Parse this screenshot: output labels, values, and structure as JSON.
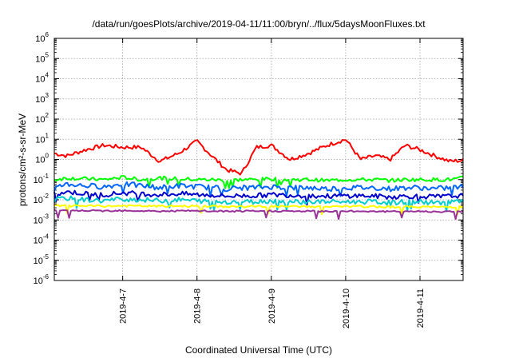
{
  "chart_data": {
    "type": "line",
    "title": "/data/run/goesPlots/archive/2019-04-11/11:00/bryn/../flux/5daysMoonFluxes.txt",
    "xlabel": "Coordinated Universal Time (UTC)",
    "ylabel": "protons/cm²-s-sr-MeV",
    "y_scale": "log",
    "ylim": [
      1e-06,
      1000000.0
    ],
    "xlim": [
      "2019-04-06 02:00",
      "2019-04-11 14:00"
    ],
    "grid": true,
    "legend": "none",
    "y_tick_labels": [
      {
        "base": "10",
        "exp": "-6"
      },
      {
        "base": "10",
        "exp": "-5"
      },
      {
        "base": "10",
        "exp": "-4"
      },
      {
        "base": "10",
        "exp": "-3"
      },
      {
        "base": "10",
        "exp": "-2"
      },
      {
        "base": "10",
        "exp": "-1"
      },
      {
        "base": "10",
        "exp": "0"
      },
      {
        "base": "10",
        "exp": "1"
      },
      {
        "base": "10",
        "exp": "2"
      },
      {
        "base": "10",
        "exp": "3"
      },
      {
        "base": "10",
        "exp": "4"
      },
      {
        "base": "10",
        "exp": "5"
      },
      {
        "base": "10",
        "exp": "6"
      }
    ],
    "x_tick_labels": [
      "2019-4-7",
      "2019-4-8",
      "2019-4-9",
      "2019-4-10",
      "2019-4-11"
    ],
    "x_ticks_day": [
      1,
      2,
      3,
      4,
      5
    ],
    "series_x_day": [
      0.08,
      0.25,
      0.5,
      0.75,
      1.0,
      1.25,
      1.5,
      1.75,
      2.0,
      2.2,
      2.4,
      2.6,
      2.8,
      3.0,
      3.25,
      3.5,
      3.75,
      4.0,
      4.2,
      4.4,
      4.6,
      4.8,
      5.0,
      5.2,
      5.4,
      5.58
    ],
    "series": [
      {
        "color": "#ff0000",
        "values": [
          2,
          1.5,
          3,
          5,
          4,
          4,
          0.8,
          2,
          8,
          1.5,
          0.3,
          0.2,
          4,
          5,
          1,
          2,
          5,
          10,
          1,
          1.5,
          1,
          5,
          3,
          1.5,
          0.8,
          0.9
        ]
      },
      {
        "color": "#00ff00",
        "values": [
          0.1,
          0.12,
          0.11,
          0.1,
          0.13,
          0.1,
          0.12,
          0.11,
          0.1,
          0.1,
          0.09,
          0.1,
          0.1,
          0.11,
          0.1,
          0.1,
          0.09,
          0.1,
          0.1,
          0.1,
          0.09,
          0.1,
          0.1,
          0.1,
          0.1,
          0.12
        ]
      },
      {
        "color": "#0066ff",
        "values": [
          0.05,
          0.06,
          0.05,
          0.045,
          0.06,
          0.05,
          0.04,
          0.05,
          0.045,
          0.04,
          0.035,
          0.04,
          0.04,
          0.045,
          0.04,
          0.04,
          0.035,
          0.04,
          0.04,
          0.04,
          0.035,
          0.04,
          0.04,
          0.035,
          0.04,
          0.045
        ]
      },
      {
        "color": "#0000cc",
        "values": [
          0.02,
          0.025,
          0.02,
          0.018,
          0.022,
          0.02,
          0.018,
          0.02,
          0.018,
          0.017,
          0.015,
          0.016,
          0.016,
          0.018,
          0.017,
          0.016,
          0.015,
          0.016,
          0.016,
          0.015,
          0.014,
          0.015,
          0.015,
          0.014,
          0.015,
          0.016
        ]
      },
      {
        "color": "#00cccc",
        "values": [
          0.01,
          0.012,
          0.01,
          0.009,
          0.011,
          0.01,
          0.009,
          0.01,
          0.009,
          0.008,
          0.008,
          0.008,
          0.008,
          0.009,
          0.008,
          0.008,
          0.008,
          0.008,
          0.008,
          0.008,
          0.007,
          0.008,
          0.008,
          0.007,
          0.008,
          0.008
        ]
      },
      {
        "color": "#ffff00",
        "values": [
          0.005,
          0.005,
          0.005,
          0.0048,
          0.005,
          0.0049,
          0.0048,
          0.0049,
          0.0048,
          0.0047,
          0.0046,
          0.0046,
          0.0047,
          0.0047,
          0.0046,
          0.0046,
          0.0045,
          0.0046,
          0.0046,
          0.0045,
          0.0045,
          0.0045,
          0.0045,
          0.0044,
          0.0045,
          0.0045
        ]
      },
      {
        "color": "#993399",
        "values": [
          0.003,
          0.0028,
          0.0029,
          0.0028,
          0.003,
          0.0028,
          0.0027,
          0.0028,
          0.0028,
          0.0027,
          0.0027,
          0.0027,
          0.0027,
          0.0028,
          0.0027,
          0.0027,
          0.0027,
          0.0027,
          0.0027,
          0.0027,
          0.0026,
          0.0027,
          0.0027,
          0.0026,
          0.0026,
          0.0027
        ]
      }
    ]
  }
}
